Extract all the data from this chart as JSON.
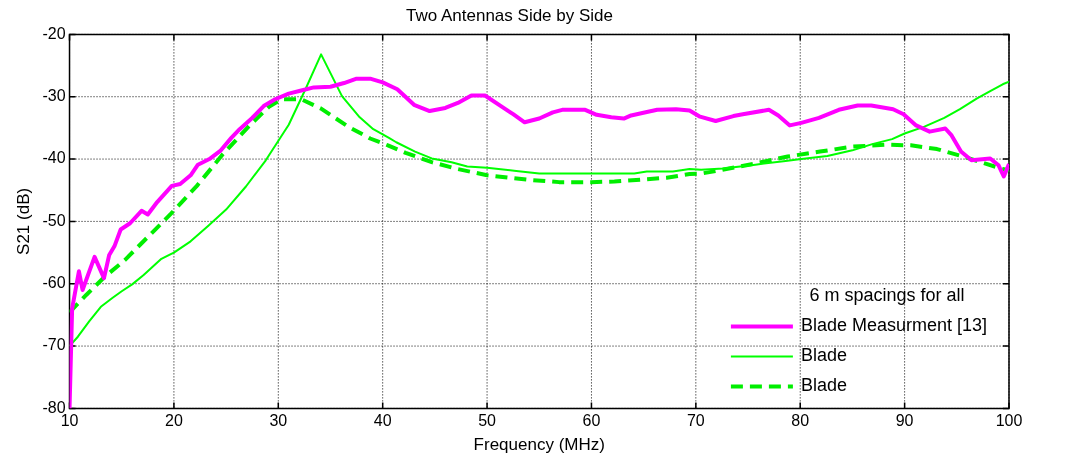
{
  "chart_data": {
    "type": "line",
    "title": "Two Antennas Side by Side",
    "xlabel": "Frequency (MHz)",
    "ylabel": "S21 (dB)",
    "legend_title": "6 m spacings for all",
    "xlim": [
      10,
      100
    ],
    "xticks": [
      10,
      20,
      30,
      40,
      50,
      60,
      70,
      80,
      90,
      100
    ],
    "ylim": [
      -80,
      -20
    ],
    "yticks": [
      -80,
      -70,
      -60,
      -50,
      -40,
      -30,
      -20
    ],
    "grid": true,
    "legend": "bottom right",
    "marker": "none",
    "series": [
      {
        "name": "Blade Measurment [13]",
        "color": "#ff00ff",
        "line_style": "solid",
        "x": [
          10,
          10.25,
          10.9,
          11.25,
          12.4,
          13.3,
          13.8,
          14.3,
          14.9,
          15.8,
          16.9,
          17.5,
          18.4,
          19.8,
          20.6,
          21.6,
          22.3,
          23.4,
          24.5,
          25.5,
          26.3,
          27.5,
          28.6,
          29.7,
          31,
          32.2,
          33.4,
          35,
          36.3,
          37.5,
          38.8,
          40,
          41.4,
          43,
          44.5,
          46,
          47.2,
          48.5,
          49.8,
          51.4,
          52.5,
          53.6,
          55,
          56.3,
          57.2,
          59.4,
          60.5,
          61.9,
          63.1,
          63.8,
          65.2,
          66.3,
          68.1,
          69.4,
          70.4,
          71.9,
          73.6,
          74.5,
          77,
          77.9,
          79,
          80.1,
          81.8,
          83.7,
          85.5,
          86.8,
          88.9,
          89.9,
          91.1,
          92.4,
          93.9,
          94.5,
          95.4,
          96.4,
          98.2,
          99,
          99.5,
          100
        ],
        "values": [
          -80,
          -64,
          -58,
          -61,
          -55.7,
          -59.1,
          -55.4,
          -54,
          -51.3,
          -50.3,
          -48.3,
          -48.9,
          -46.9,
          -44.3,
          -44,
          -42.6,
          -40.9,
          -40,
          -38.6,
          -36.6,
          -35.2,
          -33.4,
          -31.5,
          -30.4,
          -29.5,
          -29,
          -28.5,
          -28.4,
          -27.8,
          -27.1,
          -27.1,
          -27.7,
          -28.8,
          -31.3,
          -32.3,
          -31.8,
          -31,
          -29.8,
          -29.8,
          -31.6,
          -32.8,
          -34.1,
          -33.5,
          -32.5,
          -32.1,
          -32.1,
          -32.9,
          -33.3,
          -33.5,
          -33,
          -32.5,
          -32.1,
          -32,
          -32.2,
          -33.2,
          -33.9,
          -33.1,
          -32.8,
          -32.1,
          -33,
          -34.6,
          -34.2,
          -33.4,
          -32.1,
          -31.4,
          -31.4,
          -32,
          -32.8,
          -34.6,
          -35.6,
          -35.1,
          -36.2,
          -38.8,
          -40.2,
          -39.9,
          -41,
          -42.8,
          -40.8
        ]
      },
      {
        "name": "Blade",
        "color": "#00ff00",
        "line_style": "solid",
        "x": [
          10,
          10.8,
          11.9,
          13,
          14.1,
          15,
          16,
          17.1,
          18.8,
          20,
          21.6,
          23.3,
          25,
          26.9,
          28.8,
          31,
          32.6,
          34.1,
          36.1,
          37.8,
          39.1,
          40.6,
          41.3,
          43.1,
          44.7,
          46.6,
          48.1,
          50,
          52.8,
          55,
          60,
          64.1,
          65.3,
          67.8,
          69.4,
          70.5,
          72.6,
          75.7,
          78.6,
          80.1,
          82.6,
          85,
          86.9,
          88.8,
          90,
          91.9,
          93.8,
          95.3,
          96.9,
          98.2,
          99.4,
          100
        ],
        "values": [
          -70,
          -68.5,
          -66,
          -63.7,
          -62.3,
          -61.2,
          -60.1,
          -58.6,
          -56,
          -55,
          -53.2,
          -50.7,
          -48.1,
          -44.4,
          -40.2,
          -34.5,
          -28.8,
          -23.2,
          -29.9,
          -33.3,
          -35.2,
          -36.6,
          -37.3,
          -38.8,
          -39.9,
          -40.5,
          -41.2,
          -41.4,
          -41.9,
          -42.3,
          -42.3,
          -42.3,
          -42,
          -42,
          -41.6,
          -41.7,
          -41.5,
          -40.9,
          -40.3,
          -40,
          -39.5,
          -38.6,
          -37.6,
          -36.8,
          -35.9,
          -34.8,
          -33.4,
          -32,
          -30.3,
          -29.1,
          -28,
          -27.6
        ]
      },
      {
        "name": "Blade",
        "color": "#00ee00",
        "line_style": "dashed",
        "x": [
          10,
          11.6,
          13.3,
          15.3,
          17.5,
          19.7,
          22.2,
          24.7,
          27.2,
          29.1,
          30.3,
          32.2,
          34.1,
          36.6,
          38.8,
          40.5,
          42.2,
          44.7,
          47.2,
          50,
          53.8,
          56.9,
          60,
          62.2,
          64.7,
          67.2,
          69.4,
          70.6,
          72,
          75.7,
          78.8,
          81.9,
          85,
          88.2,
          90.6,
          93.1,
          95.6,
          97.5,
          99.4,
          100
        ],
        "values": [
          -64.6,
          -61.8,
          -59,
          -56.2,
          -52.5,
          -48.8,
          -44.3,
          -39.2,
          -34.7,
          -31.6,
          -30.4,
          -30.4,
          -31.9,
          -34.7,
          -36.7,
          -37.8,
          -39,
          -40.5,
          -41.6,
          -42.6,
          -43.3,
          -43.7,
          -43.7,
          -43.6,
          -43.3,
          -43,
          -42.4,
          -42.3,
          -41.9,
          -40.7,
          -39.6,
          -38.8,
          -38,
          -37.7,
          -37.8,
          -38.4,
          -39.6,
          -40.6,
          -41.6,
          -41.8
        ]
      }
    ]
  }
}
